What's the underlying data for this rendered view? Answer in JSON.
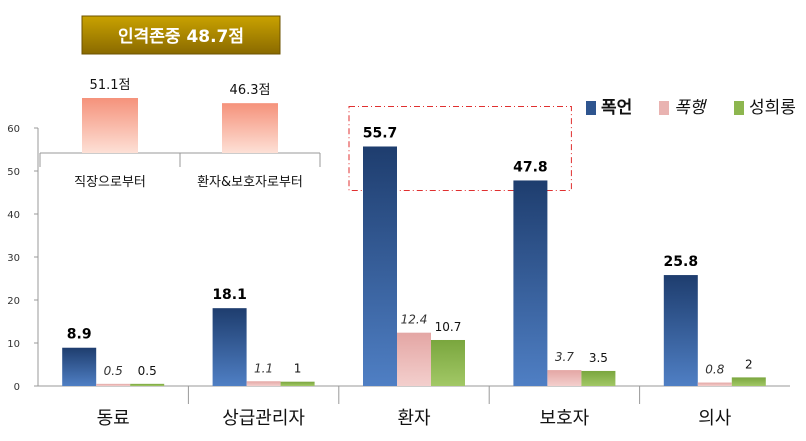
{
  "chart_data": {
    "type": "bar",
    "categories": [
      "동료",
      "상급관리자",
      "환자",
      "보호자",
      "의사"
    ],
    "series": [
      {
        "name": "폭언",
        "color": "#2f558f",
        "values": [
          8.9,
          18.1,
          55.7,
          47.8,
          25.8
        ],
        "labels": [
          "8.9",
          "18.1",
          "55.7",
          "47.8",
          "25.8"
        ]
      },
      {
        "name": "폭행",
        "color": "#e9b3b1",
        "values": [
          0.5,
          1.1,
          12.4,
          3.7,
          0.8
        ],
        "labels": [
          "0.5",
          "1.1",
          "12.4",
          "3.7",
          "0.8"
        ]
      },
      {
        "name": "성희롱",
        "color": "#8db64f",
        "values": [
          0.5,
          1,
          10.7,
          3.5,
          2
        ],
        "labels": [
          "0.5",
          "1",
          "10.7",
          "3.5",
          "2"
        ]
      }
    ],
    "ylim": [
      0,
      60
    ],
    "yticks": [
      "0",
      "10",
      "20",
      "30",
      "40",
      "50",
      "60"
    ],
    "legend_position": "top-right",
    "highlight_categories": [
      "환자",
      "보호자"
    ]
  },
  "inset": {
    "title": "인격존중  48.7점",
    "title_color": "#9a7700",
    "bars": [
      {
        "label": "직장으로부터",
        "value": 51.1,
        "value_label": "51.1점"
      },
      {
        "label": "환자&보호자로부터",
        "value": 46.3,
        "value_label": "46.3점"
      }
    ],
    "bar_color": "#f6a08c"
  }
}
